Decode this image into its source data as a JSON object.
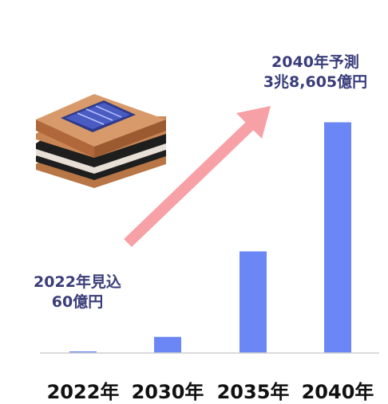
{
  "chart_data": {
    "type": "bar",
    "categories": [
      "2022年",
      "2030年",
      "2035年",
      "2040年"
    ],
    "values": [
      60,
      2700,
      17000,
      38605
    ],
    "unit": "億円",
    "ylim": [
      0,
      40000
    ],
    "grid": false,
    "bar_color": "#6b87f5",
    "arrow_color": "#f7a0a5",
    "annotations": [
      {
        "line1": "2022年見込",
        "line2": "60億円"
      },
      {
        "line1": "2040年予測",
        "line2": "3兆8,605億円"
      }
    ]
  }
}
